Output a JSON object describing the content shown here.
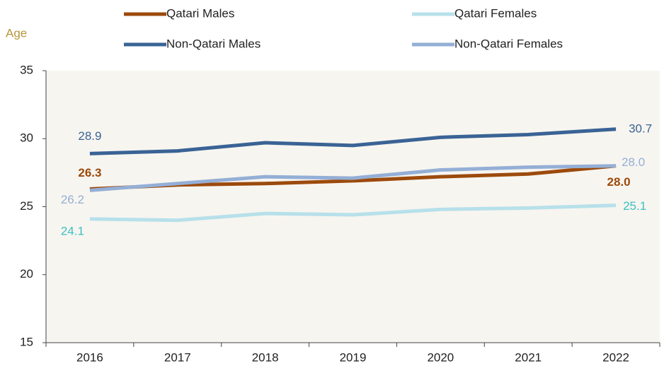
{
  "chart_data": {
    "type": "line",
    "y_label": "Age",
    "categories": [
      "2016",
      "2017",
      "2018",
      "2019",
      "2020",
      "2021",
      "2022"
    ],
    "ylim": [
      15,
      35
    ],
    "yticks": [
      15,
      20,
      25,
      30,
      35
    ],
    "series": [
      {
        "name": "Qatari Males",
        "color": "#9c4a0c",
        "label_color": "#9c4a0c",
        "label_bold": true,
        "values": [
          26.3,
          26.6,
          26.7,
          26.9,
          27.2,
          27.4,
          28.0
        ],
        "value_labels": [
          "26.3",
          null,
          null,
          null,
          null,
          null,
          "28.0"
        ]
      },
      {
        "name": "Qatari Females",
        "color": "#b7e0ea",
        "label_color": "#3cc0c0",
        "label_bold": false,
        "values": [
          24.1,
          24.0,
          24.5,
          24.4,
          24.8,
          24.9,
          25.1
        ],
        "value_labels": [
          "24.1",
          null,
          null,
          null,
          null,
          null,
          "25.1"
        ]
      },
      {
        "name": "Non-Qatari Males",
        "color": "#3a6395",
        "label_color": "#3a6395",
        "label_bold": false,
        "values": [
          28.9,
          29.1,
          29.7,
          29.5,
          30.1,
          30.3,
          30.7
        ],
        "value_labels": [
          "28.9",
          null,
          null,
          null,
          null,
          null,
          "30.7"
        ]
      },
      {
        "name": "Non-Qatari Females",
        "color": "#94afd6",
        "label_color": "#94afd6",
        "label_bold": false,
        "values": [
          26.2,
          26.7,
          27.2,
          27.1,
          27.7,
          27.9,
          28.0
        ],
        "value_labels": [
          "26.2",
          null,
          null,
          null,
          null,
          null,
          "28.0"
        ]
      }
    ]
  }
}
